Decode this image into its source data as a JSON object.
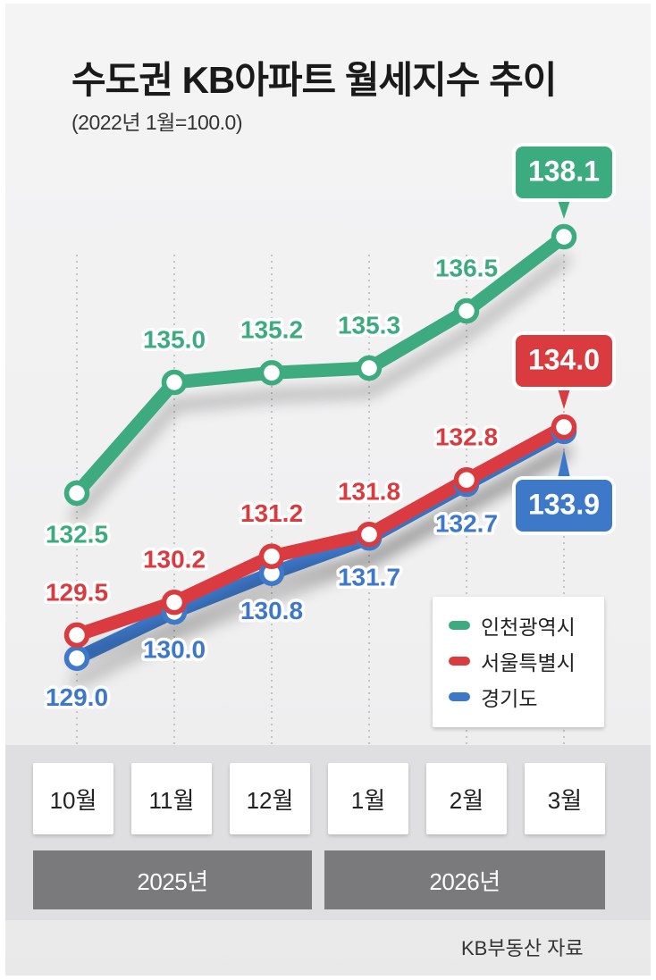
{
  "chart_data": {
    "type": "line",
    "title": "수도권 KB아파트 월세지수 추이",
    "subtitle": "(2022년 1월=100.0)",
    "x": [
      "10월",
      "11월",
      "12월",
      "1월",
      "2월",
      "3월"
    ],
    "year_groups": [
      {
        "label": "2025년",
        "months": [
          "10월",
          "11월",
          "12월"
        ]
      },
      {
        "label": "2026년",
        "months": [
          "1월",
          "2월",
          "3월"
        ]
      }
    ],
    "series": [
      {
        "name": "인천광역시",
        "color": "#3cab7f",
        "values": [
          132.5,
          135.0,
          135.2,
          135.3,
          136.5,
          138.1
        ]
      },
      {
        "name": "서울특별시",
        "color": "#d93b3f",
        "values": [
          129.5,
          130.2,
          131.2,
          131.8,
          132.8,
          134.0
        ]
      },
      {
        "name": "경기도",
        "color": "#3d78c9",
        "values": [
          129.0,
          130.0,
          130.8,
          131.7,
          132.7,
          133.9
        ]
      }
    ],
    "value_labels": {
      "인천광역시": [
        "132.5",
        "135.0",
        "135.2",
        "135.3",
        "136.5",
        "138.1"
      ],
      "서울특별시": [
        "129.5",
        "130.2",
        "131.2",
        "131.8",
        "132.8",
        "134.0"
      ],
      "경기도": [
        "129.0",
        "130.0",
        "130.8",
        "131.7",
        "132.7",
        "133.9"
      ]
    },
    "highlighted_last_value": true,
    "legend_position": "bottom-right",
    "grid": "vertical-dotted",
    "ylim": [
      128.0,
      139.0
    ],
    "source": "KB부동산 자료"
  }
}
